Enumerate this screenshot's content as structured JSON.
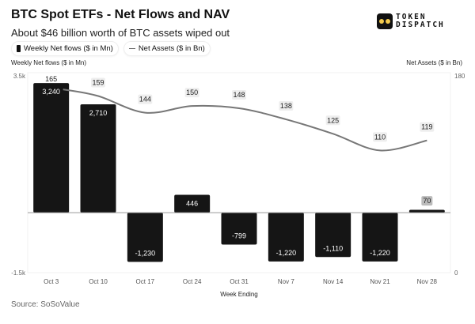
{
  "title": "BTC Spot ETFs - Net Flows and NAV",
  "subtitle": "About $46 billion worth of BTC assets wiped out",
  "logo": {
    "line1": "TOKEN",
    "line2": "DISPATCH"
  },
  "source": "Source: SoSoValue",
  "chart_data": {
    "type": "bar",
    "categories": [
      "Oct 3",
      "Oct 10",
      "Oct 17",
      "Oct 24",
      "Oct 31",
      "Nov 7",
      "Nov 14",
      "Nov 21",
      "Nov 28"
    ],
    "series": [
      {
        "name": "Weekly Net flows ($ in Mn)",
        "type": "bar",
        "axis": "left",
        "values": [
          3240,
          2710,
          -1230,
          446,
          -799,
          -1220,
          -1110,
          -1220,
          70
        ],
        "labels": [
          "3,240",
          "2,710",
          "-1,230",
          "446",
          "-799",
          "-1,220",
          "-1,110",
          "-1,220",
          "70"
        ],
        "color": "#151515"
      },
      {
        "name": "Net Assets ($ in Bn)",
        "type": "line",
        "axis": "right",
        "values": [
          165,
          159,
          144,
          150,
          148,
          138,
          125,
          110,
          119
        ],
        "color": "#777777"
      }
    ],
    "xlabel": "Week Ending",
    "ylabel_left": "Weekly Net flows ($ in Mn)",
    "ylabel_right": "Net Assets ($ in Bn)",
    "ylim_left": [
      -1500,
      3500
    ],
    "ylim_right": [
      0,
      180
    ],
    "left_tick_labels": [
      "3.5k",
      "-1.5k"
    ],
    "right_tick_labels": [
      "180",
      "0"
    ],
    "grid": false,
    "legend": "top-left"
  }
}
